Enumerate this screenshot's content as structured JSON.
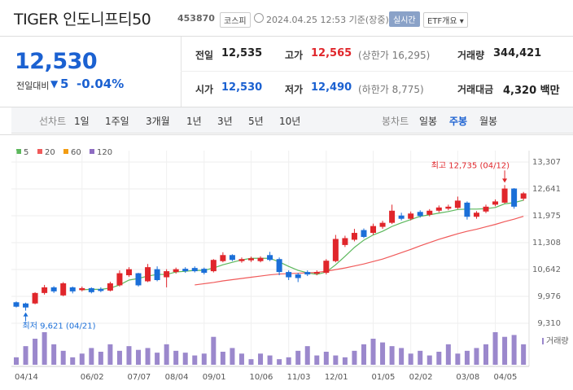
{
  "header": {
    "title": "TIGER 인도니프티50",
    "code": "453870",
    "market": "코스피",
    "timestamp": "2024.04.25 12:53 기준(장중)",
    "realtime": "실시간",
    "etf_info": "ETF개요 ▾"
  },
  "quote": {
    "price": "12,530",
    "change_label": "전일대비",
    "change": "5",
    "change_pct": "-0.04%",
    "rows": [
      [
        {
          "label": "전일",
          "value": "12,535",
          "color": "#222"
        },
        {
          "label": "고가",
          "value": "12,565",
          "note": "(상한가 16,295)",
          "color": "#e0262b"
        },
        {
          "label": "거래량",
          "value": "344,421",
          "color": "#222"
        }
      ],
      [
        {
          "label": "시가",
          "value": "12,530",
          "color": "#1b61d1"
        },
        {
          "label": "저가",
          "value": "12,490",
          "note": "(하한가 8,775)",
          "color": "#1b61d1"
        },
        {
          "label": "거래대금",
          "value": "4,320 백만",
          "color": "#222"
        }
      ]
    ]
  },
  "tabs": {
    "line_label": "선차트",
    "line": [
      "1일",
      "1주일",
      "3개월",
      "1년",
      "3년",
      "5년",
      "10년"
    ],
    "candle_label": "봉차트",
    "candle": [
      "일봉",
      "주봉",
      "월봉"
    ],
    "selected": "주봉"
  },
  "chart_data": {
    "type": "candlestick",
    "categories": [
      "04/14",
      null,
      null,
      null,
      null,
      null,
      null,
      "06/02",
      null,
      null,
      null,
      null,
      "07/07",
      null,
      null,
      null,
      "08/04",
      null,
      null,
      null,
      "09/01",
      null,
      null,
      null,
      null,
      "10/06",
      null,
      null,
      null,
      "11/03",
      null,
      null,
      null,
      "12/01",
      null,
      null,
      null,
      null,
      "01/05",
      null,
      null,
      null,
      "02/02",
      null,
      null,
      null,
      null,
      "03/08",
      null,
      null,
      null,
      "04/05",
      null,
      null,
      null
    ],
    "open": [
      9830,
      9800,
      9800,
      10060,
      10200,
      10000,
      10200,
      10130,
      10180,
      10160,
      10120,
      10250,
      10500,
      10550,
      10350,
      10650,
      10450,
      10580,
      10660,
      10680,
      10660,
      10600,
      10850,
      11000,
      10850,
      10870,
      10850,
      11000,
      10900,
      10580,
      10520,
      10580,
      10540,
      10560,
      10850,
      11250,
      11380,
      11620,
      11550,
      11700,
      11800,
      11980,
      11900,
      12070,
      12000,
      12100,
      12150,
      12170,
      12300,
      11950,
      12080,
      12250,
      12300,
      12650,
      12400
    ],
    "high": [
      9850,
      9820,
      10080,
      10260,
      10230,
      10330,
      10220,
      10220,
      10200,
      10200,
      10340,
      10620,
      10700,
      10560,
      10780,
      10720,
      10650,
      10690,
      10700,
      10720,
      10690,
      10900,
      11070,
      11020,
      10940,
      10960,
      10970,
      11080,
      10940,
      10620,
      10560,
      10620,
      10620,
      10900,
      11500,
      11480,
      11650,
      11660,
      11780,
      11850,
      12250,
      12050,
      12080,
      12110,
      12140,
      12230,
      12250,
      12450,
      12330,
      12090,
      12250,
      12380,
      12735,
      12660,
      12565
    ],
    "low": [
      9700,
      9621,
      9780,
      10020,
      10060,
      9980,
      10050,
      10100,
      10050,
      10080,
      10100,
      10220,
      10460,
      10220,
      10330,
      10350,
      10200,
      10540,
      10560,
      10570,
      10520,
      10570,
      10820,
      10850,
      10810,
      10830,
      10820,
      10850,
      10500,
      10380,
      10330,
      10480,
      10500,
      10520,
      10820,
      11200,
      11340,
      11420,
      11500,
      11650,
      11770,
      11860,
      11860,
      11930,
      11960,
      12060,
      12110,
      12140,
      11880,
      11900,
      12040,
      12210,
      12280,
      12150,
      12350
    ],
    "close": [
      9720,
      9700,
      10060,
      10200,
      10100,
      10300,
      10100,
      10180,
      10080,
      10110,
      10300,
      10550,
      10650,
      10250,
      10700,
      10380,
      10600,
      10650,
      10600,
      10600,
      10560,
      10880,
      11000,
      10880,
      10900,
      10920,
      10930,
      10880,
      10580,
      10450,
      10430,
      10520,
      10580,
      10860,
      11400,
      11420,
      11550,
      11450,
      11720,
      11800,
      12100,
      11900,
      12030,
      11970,
      12100,
      12180,
      12200,
      12350,
      11950,
      12050,
      12200,
      12330,
      12650,
      12200,
      12530
    ],
    "volume": [
      8,
      20,
      28,
      35,
      22,
      15,
      8,
      12,
      18,
      14,
      22,
      15,
      20,
      16,
      18,
      13,
      22,
      15,
      13,
      10,
      12,
      30,
      14,
      18,
      12,
      6,
      12,
      10,
      6,
      8,
      15,
      20,
      10,
      14,
      10,
      8,
      15,
      22,
      28,
      24,
      20,
      18,
      12,
      15,
      10,
      14,
      22,
      12,
      15,
      18,
      22,
      35,
      30,
      32,
      22
    ],
    "volume_label": "거래량",
    "volume_color": "#9b88cc",
    "up_color": "#e0262b",
    "down_color": "#1b6fd8",
    "series": [
      {
        "name": "5",
        "color": "#5cb85c",
        "values": [
          null,
          null,
          null,
          null,
          null,
          null,
          null,
          10140,
          10150,
          10150,
          10180,
          10260,
          10380,
          10420,
          10480,
          10520,
          10520,
          10580,
          10600,
          10620,
          10620,
          10680,
          10760,
          10820,
          10880,
          10920,
          10920,
          10920,
          10830,
          10720,
          10620,
          10560,
          10520,
          10580,
          10760,
          10970,
          11190,
          11370,
          11500,
          11590,
          11710,
          11800,
          11880,
          11960,
          12000,
          12040,
          12080,
          12130,
          12140,
          12140,
          12150,
          12180,
          12270,
          12300,
          12360
        ]
      },
      {
        "name": "20",
        "color": "#f05a5a",
        "values": [
          null,
          null,
          null,
          null,
          null,
          null,
          null,
          null,
          null,
          null,
          null,
          null,
          null,
          null,
          null,
          null,
          null,
          null,
          null,
          10260,
          10290,
          10320,
          10360,
          10390,
          10420,
          10450,
          10480,
          10510,
          10530,
          10540,
          10550,
          10560,
          10570,
          10600,
          10640,
          10680,
          10730,
          10780,
          10840,
          10900,
          10980,
          11060,
          11140,
          11230,
          11310,
          11390,
          11460,
          11530,
          11590,
          11640,
          11700,
          11760,
          11830,
          11890,
          11960
        ]
      },
      {
        "name": "60",
        "color": "#f39c12"
      },
      {
        "name": "120",
        "color": "#8e6cc2"
      }
    ],
    "ylim": [
      9310,
      13307
    ],
    "yticks": [
      {
        "value": 9310,
        "label": "9,310"
      },
      {
        "value": 9976,
        "label": "9,976"
      },
      {
        "value": 10642,
        "label": "10,642"
      },
      {
        "value": 11308,
        "label": "11,308"
      },
      {
        "value": 11975,
        "label": "11,975"
      },
      {
        "value": 12641,
        "label": "12,641"
      },
      {
        "value": 13307,
        "label": "13,307"
      }
    ],
    "grid": true,
    "annotations": {
      "high": "최고 12,735 (04/12)",
      "low": "최저 9,621 (04/21)"
    }
  }
}
